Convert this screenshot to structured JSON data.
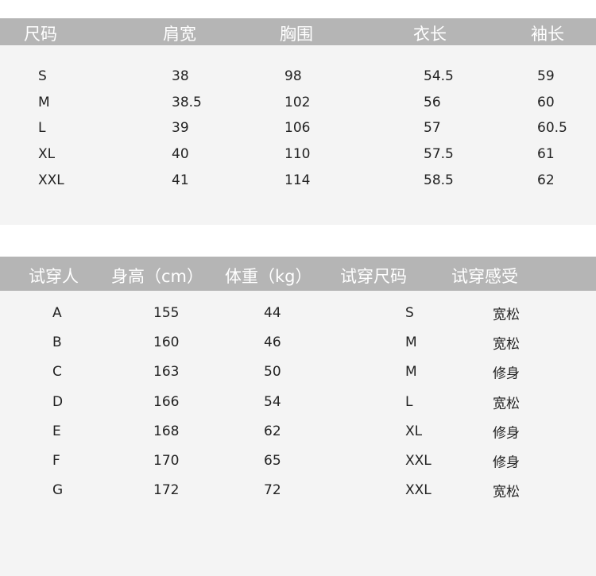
{
  "size_table": {
    "headers": [
      "尺码",
      "肩宽",
      "胸围",
      "衣长",
      "袖长"
    ],
    "rows": [
      [
        "S",
        "38",
        "98",
        "54.5",
        "59"
      ],
      [
        "M",
        "38.5",
        "102",
        "56",
        "60"
      ],
      [
        "L",
        "39",
        "106",
        "57",
        "60.5"
      ],
      [
        "XL",
        "40",
        "110",
        "57.5",
        "61"
      ],
      [
        "XXL",
        "41",
        "114",
        "58.5",
        "62"
      ]
    ]
  },
  "fit_table": {
    "headers": [
      "试穿人",
      "身高（cm）",
      "体重（kg）",
      "试穿尺码",
      "试穿感受"
    ],
    "rows": [
      [
        "A",
        "155",
        "44",
        "S",
        "宽松"
      ],
      [
        "B",
        "160",
        "46",
        "M",
        "宽松"
      ],
      [
        "C",
        "163",
        "50",
        "M",
        "修身"
      ],
      [
        "D",
        "166",
        "54",
        "L",
        "宽松"
      ],
      [
        "E",
        "168",
        "62",
        "XL",
        "修身"
      ],
      [
        "F",
        "170",
        "65",
        "XXL",
        "修身"
      ],
      [
        "G",
        "172",
        "72",
        "XXL",
        "宽松"
      ]
    ]
  },
  "colors": {
    "header_bg": "#b5b5b5",
    "body_bg": "#f4f4f4"
  }
}
